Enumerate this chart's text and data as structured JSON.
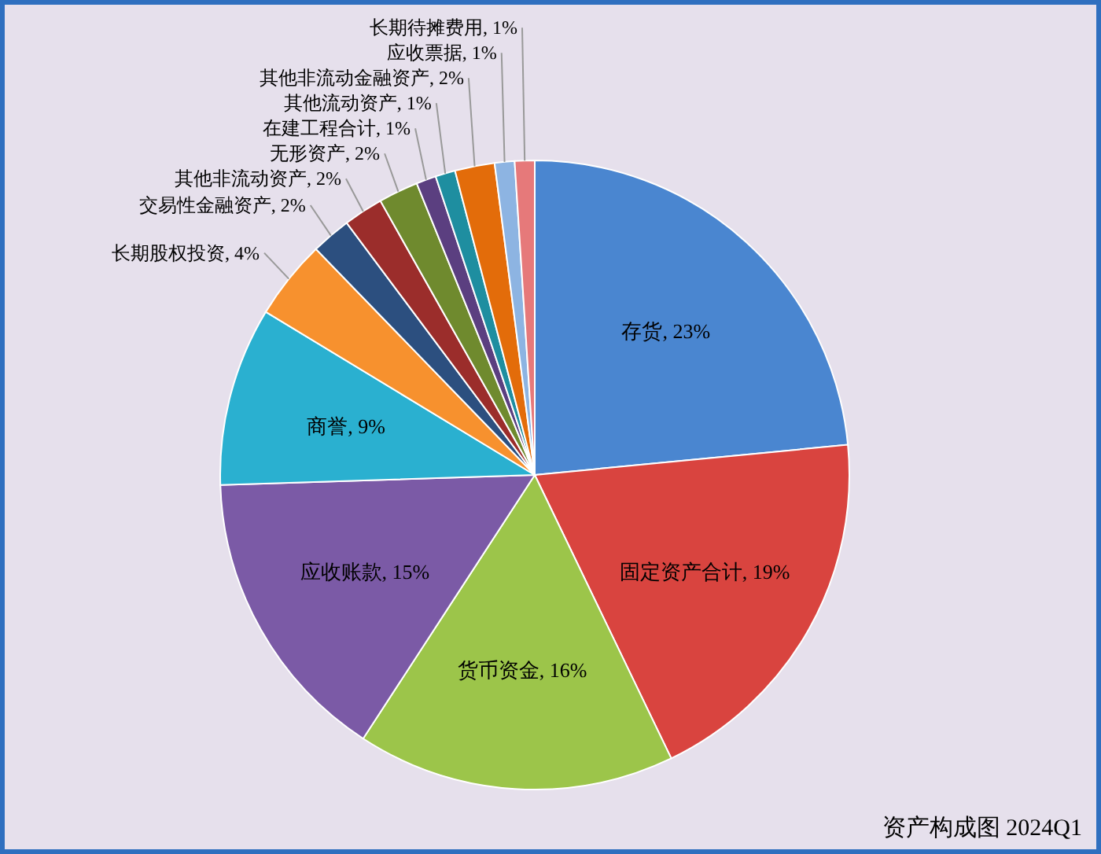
{
  "chart_data": {
    "type": "pie",
    "title": "资产构成图 2024Q1",
    "value_labels": [
      ", 23%",
      ", 19%",
      ", 16%",
      ", 15%",
      ", 9%",
      ", 4%",
      ", 2%",
      ", 2%",
      ", 2%",
      ", 1%",
      ", 1%",
      ", 2%",
      ", 1%",
      ", 1%"
    ],
    "categories": [
      "存货",
      "固定资产合计",
      "货币资金",
      "应收账款",
      "商誉",
      "长期股权投资",
      "交易性金融资产",
      "其他非流动资产",
      "无形资产",
      "在建工程合计",
      "其他流动资产",
      "其他非流动金融资产",
      "应收票据",
      "长期待摊费用"
    ],
    "values": [
      23,
      19,
      16,
      15,
      9,
      4,
      2,
      2,
      2,
      1,
      1,
      2,
      1,
      1
    ],
    "colors": [
      "#4a86d0",
      "#d9443f",
      "#9cc54a",
      "#7b5aa6",
      "#2ab0d0",
      "#f7912e",
      "#2c4f7f",
      "#9b2d2b",
      "#6f8a2e",
      "#5b3f80",
      "#1e8ea0",
      "#e36c0a",
      "#8db4e2",
      "#e6797a"
    ]
  }
}
